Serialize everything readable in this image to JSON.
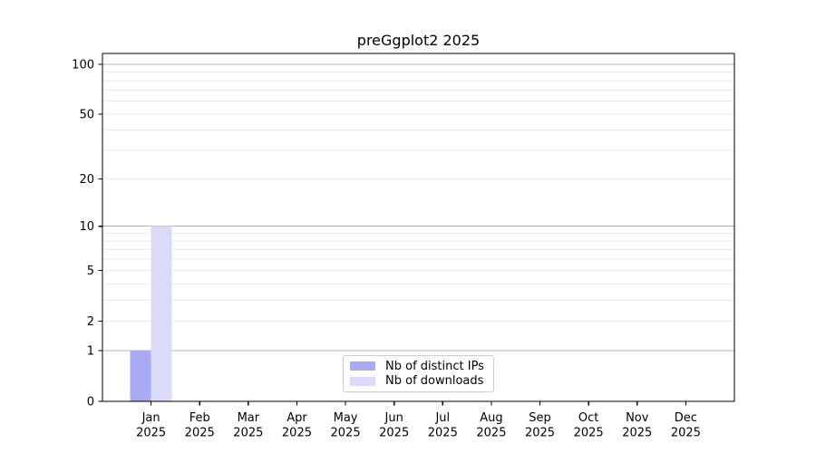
{
  "chart_data": {
    "type": "bar",
    "title": "preGgplot2 2025",
    "categories": [
      "Jan",
      "Feb",
      "Mar",
      "Apr",
      "May",
      "Jun",
      "Jul",
      "Aug",
      "Sep",
      "Oct",
      "Nov",
      "Dec"
    ],
    "category_year": "2025",
    "series": [
      {
        "name": "Nb of distinct IPs",
        "color": "#a9a9f5",
        "values": [
          1,
          0,
          0,
          0,
          0,
          0,
          0,
          0,
          0,
          0,
          0,
          0
        ]
      },
      {
        "name": "Nb of downloads",
        "color": "#dbdbf8",
        "values": [
          10,
          0,
          0,
          0,
          0,
          0,
          0,
          0,
          0,
          0,
          0,
          0
        ]
      }
    ],
    "xlabel": "",
    "ylabel": "",
    "yscale": "log1p",
    "ylim": [
      0,
      116
    ],
    "yticks": [
      0,
      1,
      2,
      5,
      10,
      20,
      50,
      100
    ],
    "ytick_labels": [
      "0",
      "1",
      "2",
      "5",
      "10",
      "20",
      "50",
      "100"
    ],
    "major_gridlines": [
      1,
      10,
      100
    ],
    "minor_gridlines": [
      2,
      3,
      4,
      5,
      6,
      7,
      8,
      9,
      20,
      30,
      40,
      50,
      60,
      70,
      80,
      90
    ],
    "grid": true,
    "legend_position": "lower center inside",
    "colors": {
      "axis": "#000000",
      "major_grid": "#b3b3b3",
      "minor_grid": "#eaeaea",
      "background": "#ffffff",
      "legend_border": "#cccccc",
      "text": "#000000"
    }
  }
}
